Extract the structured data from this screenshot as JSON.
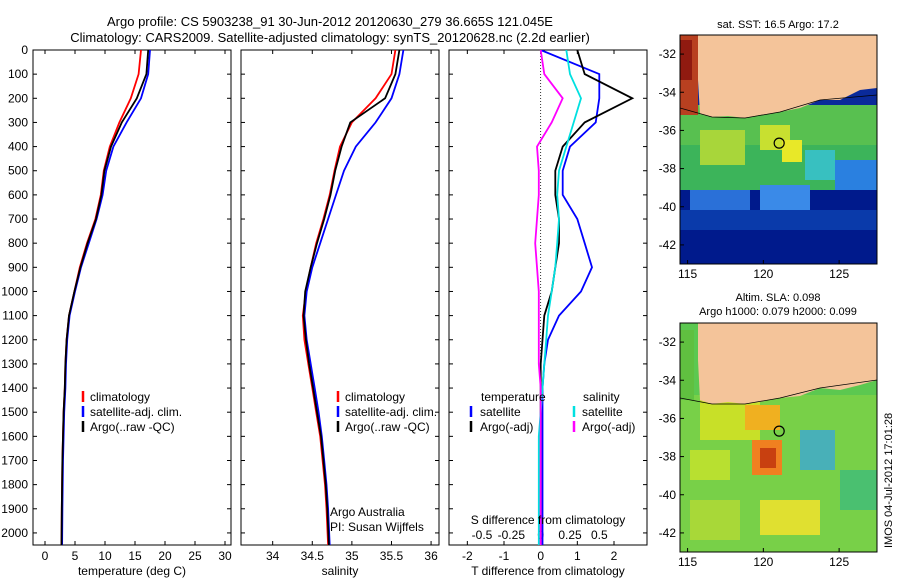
{
  "header": {
    "line1": "Argo profile: CS 5903238_91 30-Jun-2012 20120630_279 36.665S 121.045E",
    "line2": "Climatology: CARS2009. Satellite-adjusted climatology: synTS_20120628.nc (2.2d earlier)"
  },
  "colors": {
    "climatology": "#ff0000",
    "satellite": "#0000ff",
    "argo": "#000000",
    "sat_diff": "#00e0e0",
    "argo_diff": "#ff00ff",
    "land": "#f4c49a"
  },
  "chart_data": [
    {
      "type": "line",
      "panel": "temperature",
      "xlabel": "temperature (deg C)",
      "ylim": [
        2050,
        0
      ],
      "xlim": [
        -2,
        31
      ],
      "xticks": [
        0,
        5,
        10,
        15,
        20,
        25,
        30
      ],
      "yticks": [
        0,
        100,
        200,
        300,
        400,
        500,
        600,
        700,
        800,
        900,
        1000,
        1100,
        1200,
        1300,
        1400,
        1500,
        1600,
        1700,
        1800,
        1900,
        2000
      ],
      "legend": [
        "climatology",
        "satellite-adj. clim.",
        "Argo(..raw -QC)"
      ],
      "series": [
        {
          "name": "climatology",
          "color": "#ff0000",
          "x": [
            16.0,
            15.6,
            14.3,
            12.4,
            10.8,
            9.8,
            9.3,
            8.4,
            7.0,
            5.8,
            4.9,
            4.0,
            3.6,
            3.4,
            3.3,
            3.1,
            3.0,
            2.9,
            2.85,
            2.8,
            2.75
          ],
          "y": [
            0,
            100,
            200,
            300,
            400,
            500,
            600,
            700,
            800,
            900,
            1000,
            1100,
            1200,
            1300,
            1400,
            1500,
            1600,
            1700,
            1800,
            1900,
            2050
          ]
        },
        {
          "name": "satellite-adj. clim.",
          "color": "#0000ff",
          "x": [
            17.5,
            17.2,
            16.0,
            13.6,
            11.4,
            10.2,
            9.6,
            8.6,
            7.3,
            6.0,
            5.0,
            4.1,
            3.7,
            3.5,
            3.4,
            3.2,
            3.1,
            3.0,
            2.95,
            2.9,
            2.85
          ],
          "y": [
            0,
            100,
            200,
            300,
            400,
            500,
            600,
            700,
            800,
            900,
            1000,
            1100,
            1200,
            1300,
            1400,
            1500,
            1600,
            1700,
            1800,
            1900,
            2050
          ]
        },
        {
          "name": "Argo(..raw -QC)",
          "color": "#000000",
          "x": [
            17.2,
            16.9,
            15.3,
            12.8,
            11.0,
            9.9,
            9.4,
            8.5,
            7.1,
            5.9,
            4.9,
            4.0,
            3.6,
            3.4,
            3.3,
            3.1,
            3.0,
            2.9,
            2.85,
            2.8,
            2.75
          ],
          "y": [
            0,
            100,
            200,
            300,
            400,
            500,
            600,
            700,
            800,
            900,
            1000,
            1100,
            1200,
            1300,
            1400,
            1500,
            1600,
            1700,
            1800,
            1900,
            2050
          ]
        }
      ]
    },
    {
      "type": "line",
      "panel": "salinity",
      "xlabel": "salinity",
      "ylim": [
        2050,
        0
      ],
      "xlim": [
        33.6,
        36.1
      ],
      "xticks": [
        34,
        34.5,
        35,
        35.5,
        36
      ],
      "legend": [
        "climatology",
        "satellite-adj. clim.",
        "Argo(..raw -QC)"
      ],
      "annotation": [
        "Argo Australia",
        "PI: Susan Wijffels"
      ],
      "series": [
        {
          "name": "climatology",
          "color": "#ff0000",
          "x": [
            35.55,
            35.5,
            35.3,
            35.0,
            34.85,
            34.78,
            34.72,
            34.64,
            34.55,
            34.48,
            34.42,
            34.38,
            34.4,
            34.45,
            34.5,
            34.55,
            34.6,
            34.63,
            34.66,
            34.68,
            34.7
          ],
          "y": [
            0,
            100,
            200,
            300,
            400,
            500,
            600,
            700,
            800,
            900,
            1000,
            1100,
            1200,
            1300,
            1400,
            1500,
            1600,
            1700,
            1800,
            1900,
            2050
          ]
        },
        {
          "name": "satellite-adj. clim.",
          "color": "#0000ff",
          "x": [
            35.65,
            35.6,
            35.5,
            35.3,
            35.05,
            34.9,
            34.8,
            34.7,
            34.6,
            34.5,
            34.43,
            34.4,
            34.43,
            34.48,
            34.53,
            34.58,
            34.62,
            34.65,
            34.68,
            34.7,
            34.72
          ],
          "y": [
            0,
            100,
            200,
            300,
            400,
            500,
            600,
            700,
            800,
            900,
            1000,
            1100,
            1200,
            1300,
            1400,
            1500,
            1600,
            1700,
            1800,
            1900,
            2050
          ]
        },
        {
          "name": "Argo(..raw -QC)",
          "color": "#000000",
          "x": [
            35.6,
            35.55,
            35.42,
            34.98,
            34.87,
            34.79,
            34.73,
            34.65,
            34.56,
            34.48,
            34.41,
            34.39,
            34.42,
            34.46,
            34.51,
            34.56,
            34.61,
            34.64,
            34.67,
            34.69,
            34.71
          ],
          "y": [
            0,
            100,
            200,
            300,
            400,
            500,
            600,
            700,
            800,
            900,
            1000,
            1100,
            1200,
            1300,
            1400,
            1500,
            1600,
            1700,
            1800,
            1900,
            2050
          ]
        }
      ]
    },
    {
      "type": "line",
      "panel": "difference",
      "xlabel": "T difference from climatology",
      "x2label": "S difference from climatology",
      "ylim": [
        2050,
        0
      ],
      "xlim": [
        -2.5,
        2.9
      ],
      "xticks": [
        -2,
        -1,
        0,
        1,
        2
      ],
      "x2ticks": [
        "-0.5",
        "-0.25",
        "0",
        "0.25",
        "0.5"
      ],
      "legend_left_title": "temperature",
      "legend_right_title": "salinity",
      "legend_left": [
        "satellite",
        "Argo(-adj)"
      ],
      "legend_right": [
        "satellite",
        "Argo(-adj)"
      ],
      "series": [
        {
          "name": "satellite",
          "color": "#0000ff",
          "x": [
            0.0,
            1.6,
            1.6,
            1.5,
            0.8,
            0.6,
            0.6,
            1.0,
            1.2,
            1.4,
            1.1,
            0.5,
            0.2,
            0.1,
            0.05,
            0.05,
            0.05,
            0.05,
            0.05,
            0.05,
            0.05
          ],
          "y": [
            0,
            100,
            200,
            300,
            400,
            500,
            600,
            700,
            800,
            900,
            1000,
            1100,
            1200,
            1300,
            1400,
            1500,
            1600,
            1700,
            1800,
            1900,
            2050
          ]
        },
        {
          "name": "Argo(-adj)",
          "color": "#000000",
          "x": [
            1.0,
            1.2,
            2.5,
            1.2,
            0.6,
            0.4,
            0.4,
            0.5,
            0.5,
            0.4,
            0.3,
            0.1,
            0.05,
            0.0,
            0.0,
            0.0,
            0.0,
            0.0,
            0.0,
            0.0,
            0.0
          ],
          "y": [
            0,
            100,
            200,
            300,
            400,
            500,
            600,
            700,
            800,
            900,
            1000,
            1100,
            1200,
            1300,
            1400,
            1500,
            1600,
            1700,
            1800,
            1900,
            2050
          ]
        },
        {
          "name": "satellite",
          "color": "#00e0e0",
          "x": [
            0.7,
            0.8,
            1.1,
            0.9,
            0.7,
            0.5,
            0.45,
            0.5,
            0.45,
            0.4,
            0.3,
            0.2,
            0.15,
            0.1,
            0.05,
            0.0,
            -0.05,
            -0.05,
            -0.05,
            -0.05,
            -0.05
          ],
          "y": [
            0,
            100,
            200,
            300,
            400,
            500,
            600,
            700,
            800,
            900,
            1000,
            1100,
            1200,
            1300,
            1400,
            1500,
            1600,
            1700,
            1800,
            1900,
            2050
          ]
        },
        {
          "name": "Argo(-adj)",
          "color": "#ff00ff",
          "x": [
            0.0,
            0.1,
            0.6,
            0.3,
            -0.1,
            -0.05,
            -0.05,
            -0.1,
            -0.15,
            -0.1,
            -0.05,
            -0.05,
            -0.05,
            -0.05,
            0.0,
            0.0,
            0.0,
            0.0,
            0.0,
            0.0,
            0.0
          ],
          "y": [
            0,
            100,
            200,
            300,
            400,
            500,
            600,
            700,
            800,
            900,
            1000,
            1100,
            1200,
            1300,
            1400,
            1500,
            1600,
            1700,
            1800,
            1900,
            2050
          ]
        }
      ]
    },
    {
      "type": "heatmap",
      "panel": "sst-map",
      "title": "sat. SST: 16.5 Argo: 17.2",
      "xlim": [
        114.5,
        127.5
      ],
      "ylim": [
        -43,
        -31
      ],
      "xticks": [
        115,
        120,
        125
      ],
      "yticks": [
        -32,
        -34,
        -36,
        -38,
        -40,
        -42
      ],
      "argo_position": [
        121.045,
        -36.665
      ]
    },
    {
      "type": "heatmap",
      "panel": "sla-map",
      "title_line1": "Altim. SLA: 0.098",
      "title_line2": "Argo h1000: 0.079 h2000: 0.099",
      "xlim": [
        114.5,
        127.5
      ],
      "ylim": [
        -43,
        -31
      ],
      "xticks": [
        115,
        120,
        125
      ],
      "yticks": [
        -32,
        -34,
        -36,
        -38,
        -40,
        -42
      ],
      "argo_position": [
        121.045,
        -36.665
      ]
    }
  ],
  "footer_stamp": "IMOS 04-Jul-2012 17:01:28"
}
